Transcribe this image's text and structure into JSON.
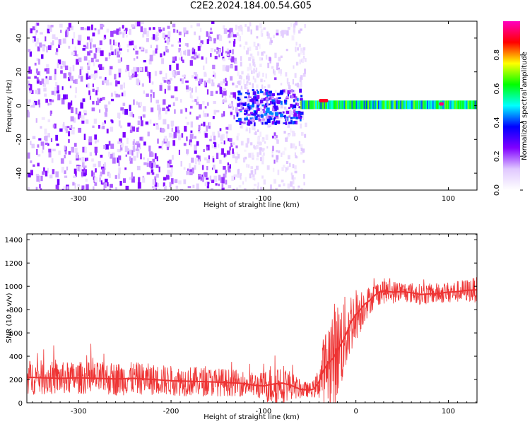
{
  "title": "C2E2.2024.184.00.54.G05",
  "colors": {
    "snr_line": "#ee3333",
    "axes": "#000000"
  },
  "chart_data": [
    {
      "type": "heatmap",
      "title": "C2E2.2024.184.00.54.G05",
      "xlabel": "Height of straight line (km)",
      "ylabel": "Frequency (Hz)",
      "xlim": [
        -356,
        131
      ],
      "ylim": [
        -50,
        50
      ],
      "xticks": [
        -300,
        -200,
        -100,
        0,
        100
      ],
      "yticks": [
        -40,
        -20,
        0,
        20,
        40
      ],
      "colorbar": {
        "label": "Normalized spectral amplitude",
        "range": [
          0,
          1
        ],
        "ticks": [
          0.0,
          0.2,
          0.4,
          0.6,
          0.8
        ],
        "tick_labels": [
          "0.0",
          "0.2",
          "0.4",
          "0.6",
          "0.8"
        ],
        "colormap": [
          "#ffffff",
          "#e0c8ff",
          "#8000ff",
          "#0000ff",
          "#00ffff",
          "#00ff00",
          "#ffff00",
          "#ff0000",
          "#ff00c0"
        ]
      },
      "regions": [
        {
          "x_range": [
            -356,
            -130
          ],
          "freq_range": [
            -50,
            50
          ],
          "amplitude": 0.05,
          "description": "broadband noise"
        },
        {
          "x_range": [
            -130,
            -60
          ],
          "freq_range": [
            -10,
            10
          ],
          "amplitude": 0.3
        },
        {
          "x_range": [
            -60,
            131
          ],
          "freq_range": [
            -2,
            3
          ],
          "amplitude": 0.55
        },
        {
          "x_range": [
            -40,
            -30
          ],
          "freq_range": [
            2,
            4
          ],
          "amplitude": 0.9
        },
        {
          "x_range": [
            90,
            95
          ],
          "freq_range": [
            0,
            2
          ],
          "amplitude": 0.95
        }
      ]
    },
    {
      "type": "line",
      "xlabel": "Height of straight line (km)",
      "ylabel": "SNR (10 * v/v)",
      "xlim": [
        -356,
        131
      ],
      "ylim": [
        0,
        1450
      ],
      "xticks": [
        -300,
        -200,
        -100,
        0,
        100
      ],
      "yticks": [
        0,
        200,
        400,
        600,
        800,
        1000,
        1200,
        1400
      ],
      "series": [
        {
          "color": "#ee3333",
          "x": [
            -356,
            -340,
            -320,
            -300,
            -280,
            -260,
            -240,
            -220,
            -200,
            -180,
            -160,
            -140,
            -120,
            -110,
            -100,
            -90,
            -80,
            -70,
            -60,
            -50,
            -45,
            -40,
            -35,
            -30,
            -25,
            -20,
            -15,
            -10,
            -5,
            0,
            5,
            10,
            15,
            20,
            25,
            30,
            40,
            50,
            60,
            70,
            80,
            90,
            100,
            110,
            120,
            131
          ],
          "y": [
            220,
            215,
            210,
            215,
            210,
            205,
            210,
            200,
            190,
            185,
            180,
            175,
            165,
            150,
            145,
            160,
            170,
            150,
            115,
            110,
            120,
            180,
            280,
            340,
            380,
            450,
            520,
            600,
            700,
            760,
            800,
            850,
            880,
            920,
            950,
            960,
            950,
            955,
            945,
            930,
            935,
            940,
            950,
            955,
            965,
            970
          ],
          "noise_amplitude": [
            150,
            150,
            140,
            140,
            140,
            145,
            140,
            135,
            130,
            130,
            125,
            120,
            110,
            110,
            120,
            200,
            180,
            120,
            80,
            60,
            80,
            150,
            300,
            400,
            500,
            420,
            380,
            330,
            280,
            230,
            200,
            150,
            120,
            110,
            110,
            110,
            100,
            90,
            90,
            90,
            90,
            90,
            90,
            95,
            100,
            110
          ],
          "mean_line": true
        }
      ]
    }
  ]
}
